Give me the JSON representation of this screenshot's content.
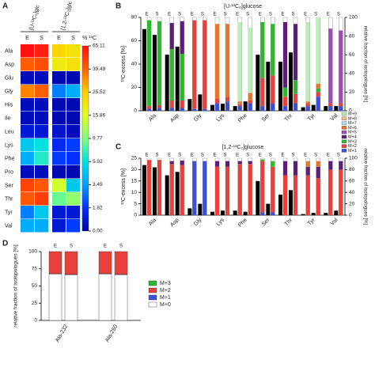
{
  "chart_data": [
    {
      "type": "heatmap",
      "panel": "A",
      "column_groups": [
        "[U-¹³C₆]glc",
        "[1,2-¹³C₂]glc"
      ],
      "columns": [
        "E",
        "S",
        "E",
        "S"
      ],
      "rows": [
        "Ala",
        "Asp",
        "Glu",
        "Gly",
        "His",
        "Ile",
        "Leu",
        "Lys",
        "Phe",
        "Pro",
        "Ser",
        "Thr",
        "Tyr",
        "Val"
      ],
      "values": [
        [
          65,
          60,
          25,
          22
        ],
        [
          40,
          45,
          20,
          22
        ],
        [
          0.5,
          0.5,
          0.3,
          0.3
        ],
        [
          35,
          40,
          3,
          4
        ],
        [
          0.5,
          0.5,
          0.3,
          0.3
        ],
        [
          0.5,
          0.5,
          0.3,
          0.3
        ],
        [
          1,
          1,
          0.8,
          0.5
        ],
        [
          5,
          6,
          1.5,
          2
        ],
        [
          4,
          7,
          2,
          1.8
        ],
        [
          0.5,
          0.5,
          0.3,
          0.3
        ],
        [
          48,
          42,
          15,
          5
        ],
        [
          42,
          50,
          9,
          11
        ],
        [
          3,
          5,
          1,
          1
        ],
        [
          4,
          4,
          1,
          2
        ]
      ],
      "colorbar_label": "% ¹³C",
      "cticks": [
        65.11,
        39.49,
        25.52,
        15.86,
        9.77,
        5.92,
        3.49,
        1.82,
        {
          "value": 0,
          "label": "0.00"
        }
      ],
      "colormap": [
        "#ff1010",
        "#ff6000",
        "#ffd000",
        "#e0ff20",
        "#80ff80",
        "#00e0e0",
        "#00a0ff",
        "#0030ff",
        "#0000a0"
      ]
    },
    {
      "type": "bar-stack",
      "panel": "B",
      "title": "[U-¹³C₆]glucose",
      "categories": [
        "Ala",
        "Asp",
        "Gly",
        "Lys",
        "Phe",
        "Ser",
        "Thr",
        "Tyr",
        "Val"
      ],
      "groups": [
        "E",
        "S"
      ],
      "ylabel": "¹³C-excess [%]",
      "y2label": "relative fraction of isotopologues [%]",
      "ylim": [
        0,
        80
      ],
      "yticks": [
        0,
        20,
        40,
        60,
        80
      ],
      "y2lim": [
        0,
        100
      ],
      "y2ticks": [
        0,
        20,
        40,
        60,
        80,
        100
      ],
      "excess_color": "#000000",
      "excess": [
        [
          70,
          65
        ],
        [
          48,
          55
        ],
        [
          10,
          14
        ],
        [
          5,
          6
        ],
        [
          4,
          8
        ],
        [
          48,
          42
        ],
        [
          42,
          50
        ],
        [
          3,
          5
        ],
        [
          4,
          4
        ]
      ],
      "series": [
        {
          "name": "M+9",
          "color": "#b8f0b8",
          "values": [
            [
              0,
              0
            ],
            [
              0,
              0
            ],
            [
              0,
              0
            ],
            [
              0,
              0
            ],
            [
              85,
              70
            ],
            [
              0,
              0
            ],
            [
              0,
              0
            ],
            [
              85,
              70
            ],
            [
              0,
              0
            ]
          ]
        },
        {
          "name": "M+8",
          "color": "#f6b98a",
          "values": [
            [
              0,
              0
            ],
            [
              0,
              0
            ],
            [
              0,
              0
            ],
            [
              0,
              0
            ],
            [
              0,
              0
            ],
            [
              0,
              0
            ],
            [
              0,
              0
            ],
            [
              0,
              0
            ],
            [
              0,
              0
            ]
          ]
        },
        {
          "name": "M+7",
          "color": "#a9def0",
          "values": [
            [
              0,
              0
            ],
            [
              0,
              0
            ],
            [
              0,
              0
            ],
            [
              0,
              0
            ],
            [
              0,
              0
            ],
            [
              0,
              0
            ],
            [
              0,
              0
            ],
            [
              0,
              0
            ],
            [
              0,
              0
            ]
          ]
        },
        {
          "name": "M+6",
          "color": "#e8742c",
          "values": [
            [
              0,
              0
            ],
            [
              0,
              0
            ],
            [
              0,
              0
            ],
            [
              80,
              78
            ],
            [
              3,
              8
            ],
            [
              0,
              0
            ],
            [
              0,
              0
            ],
            [
              2,
              5
            ],
            [
              0,
              0
            ]
          ]
        },
        {
          "name": "M+5",
          "color": "#9b4fb5",
          "values": [
            [
              0,
              0
            ],
            [
              0,
              0
            ],
            [
              0,
              0
            ],
            [
              0,
              0
            ],
            [
              0,
              0
            ],
            [
              0,
              0
            ],
            [
              0,
              0
            ],
            [
              0,
              0
            ],
            [
              80,
              78
            ]
          ]
        },
        {
          "name": "M+4",
          "color": "#5b1f7a",
          "values": [
            [
              0,
              0
            ],
            [
              28,
              35
            ],
            [
              0,
              0
            ],
            [
              0,
              0
            ],
            [
              0,
              0
            ],
            [
              0,
              0
            ],
            [
              70,
              60
            ],
            [
              0,
              0
            ],
            [
              0,
              0
            ]
          ]
        },
        {
          "name": "M+3",
          "color": "#2eb82e",
          "values": [
            [
              92,
              90
            ],
            [
              55,
              50
            ],
            [
              0,
              0
            ],
            [
              0,
              0
            ],
            [
              0,
              0
            ],
            [
              60,
              55
            ],
            [
              10,
              15
            ],
            [
              0,
              4
            ],
            [
              0,
              0
            ]
          ]
        },
        {
          "name": "M+2",
          "color": "#e8413c",
          "values": [
            [
              3,
              3
            ],
            [
              8,
              8
            ],
            [
              95,
              95
            ],
            [
              5,
              5
            ],
            [
              2,
              3
            ],
            [
              30,
              30
            ],
            [
              10,
              10
            ],
            [
              3,
              5
            ],
            [
              3,
              3
            ]
          ]
        },
        {
          "name": "M+1",
          "color": "#3b4fd8",
          "values": [
            [
              2,
              3
            ],
            [
              3,
              3
            ],
            [
              2,
              2
            ],
            [
              8,
              10
            ],
            [
              5,
              8
            ],
            [
              5,
              8
            ],
            [
              5,
              8
            ],
            [
              5,
              15
            ],
            [
              5,
              5
            ]
          ]
        }
      ]
    },
    {
      "type": "bar-stack",
      "panel": "C",
      "title": "[1,2-¹³C₂]glucose",
      "categories": [
        "Ala",
        "Asp",
        "Gly",
        "Lys",
        "Phe",
        "Ser",
        "Thr",
        "Tyr",
        "Val"
      ],
      "groups": [
        "E",
        "S"
      ],
      "ylabel": "¹³C-excess [%]",
      "y2label": "relative fraction of isotopologues [%]",
      "ylim": [
        0,
        25
      ],
      "yticks": [
        0,
        5,
        10,
        15,
        20,
        25
      ],
      "y2lim": [
        0,
        100
      ],
      "y2ticks": [
        0,
        20,
        40,
        60,
        80,
        100
      ],
      "excess_color": "#000000",
      "excess": [
        [
          22,
          21
        ],
        [
          17.5,
          19
        ],
        [
          3,
          5
        ],
        [
          1.5,
          2
        ],
        [
          2,
          1.5
        ],
        [
          15,
          5
        ],
        [
          9,
          11
        ],
        [
          0.5,
          1
        ],
        [
          1,
          2
        ]
      ],
      "series_values": [
        [
          [
            0,
            0
          ],
          [
            0,
            0
          ],
          [
            0,
            0
          ],
          [
            0,
            0
          ],
          [
            0,
            0
          ],
          [
            0,
            0
          ],
          [
            0,
            0
          ],
          [
            0,
            0
          ],
          [
            0,
            0
          ]
        ],
        [
          [
            0,
            0
          ],
          [
            0,
            0
          ],
          [
            0,
            0
          ],
          [
            0,
            0
          ],
          [
            0,
            0
          ],
          [
            0,
            0
          ],
          [
            0,
            0
          ],
          [
            0,
            0
          ],
          [
            0,
            0
          ]
        ],
        [
          [
            0,
            0
          ],
          [
            0,
            0
          ],
          [
            0,
            0
          ],
          [
            0,
            0
          ],
          [
            0,
            0
          ],
          [
            0,
            0
          ],
          [
            0,
            0
          ],
          [
            0,
            0
          ],
          [
            0,
            0
          ]
        ],
        [
          [
            0,
            0
          ],
          [
            0,
            0
          ],
          [
            0,
            0
          ],
          [
            0,
            0
          ],
          [
            0,
            0
          ],
          [
            0,
            0
          ],
          [
            0,
            0
          ],
          [
            10,
            10
          ],
          [
            0,
            0
          ]
        ],
        [
          [
            0,
            0
          ],
          [
            0,
            0
          ],
          [
            0,
            0
          ],
          [
            0,
            0
          ],
          [
            0,
            0
          ],
          [
            0,
            0
          ],
          [
            0,
            0
          ],
          [
            0,
            0
          ],
          [
            0,
            0
          ]
        ],
        [
          [
            0,
            0
          ],
          [
            5,
            8
          ],
          [
            0,
            0
          ],
          [
            10,
            10
          ],
          [
            5,
            5
          ],
          [
            0,
            0
          ],
          [
            25,
            25
          ],
          [
            15,
            20
          ],
          [
            15,
            15
          ]
        ],
        [
          [
            0,
            0
          ],
          [
            0,
            0
          ],
          [
            0,
            0
          ],
          [
            0,
            0
          ],
          [
            0,
            0
          ],
          [
            3,
            10
          ],
          [
            0,
            0
          ],
          [
            0,
            0
          ],
          [
            0,
            0
          ]
        ],
        [
          [
            97,
            97
          ],
          [
            90,
            88
          ],
          [
            0,
            0
          ],
          [
            85,
            85
          ],
          [
            90,
            90
          ],
          [
            90,
            80
          ],
          [
            70,
            70
          ],
          [
            70,
            65
          ],
          [
            80,
            80
          ]
        ],
        [
          [
            0,
            0
          ],
          [
            0,
            0
          ],
          [
            95,
            95
          ],
          [
            0,
            0
          ],
          [
            0,
            0
          ],
          [
            5,
            5
          ],
          [
            0,
            0
          ],
          [
            0,
            0
          ],
          [
            0,
            0
          ]
        ]
      ]
    },
    {
      "type": "stacked-bar",
      "panel": "D",
      "categories": [
        "Ala-232",
        "Ala-260"
      ],
      "groups": [
        "E",
        "S"
      ],
      "ylabel": "relative fraction of isotopologues [%]",
      "ylim": [
        0,
        100
      ],
      "yticks": [
        0,
        25,
        50,
        75,
        100
      ],
      "series": [
        {
          "name": "M+3",
          "color": "#2eb82e",
          "values": [
            [
              0,
              0
            ],
            [
              0,
              0
            ]
          ]
        },
        {
          "name": "M+2",
          "color": "#e8413c",
          "values": [
            [
              32,
              33
            ],
            [
              32,
              33
            ]
          ]
        },
        {
          "name": "M+1",
          "color": "#3b4fd8",
          "values": [
            [
              0.5,
              0.5
            ],
            [
              0.5,
              0.5
            ]
          ]
        },
        {
          "name": "M+0",
          "color": "#ffffff",
          "values": [
            [
              67.5,
              66.5
            ],
            [
              67.5,
              66.5
            ]
          ]
        }
      ]
    }
  ]
}
